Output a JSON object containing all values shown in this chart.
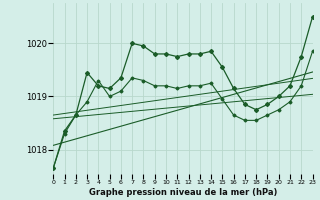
{
  "xlabel": "Graphe pression niveau de la mer (hPa)",
  "bg_color": "#d4eee8",
  "grid_color": "#b8d8cc",
  "line_color": "#1a5c28",
  "x": [
    0,
    1,
    2,
    3,
    4,
    5,
    6,
    7,
    8,
    9,
    10,
    11,
    12,
    13,
    14,
    15,
    16,
    17,
    18,
    19,
    20,
    21,
    22,
    23
  ],
  "series_main": [
    1017.65,
    1018.35,
    1018.65,
    1019.45,
    1019.2,
    1019.15,
    1019.35,
    1020.0,
    1019.95,
    1019.8,
    1019.8,
    1019.75,
    1019.8,
    1019.8,
    1019.85,
    1019.55,
    1019.15,
    1018.85,
    1018.75,
    1018.85,
    1019.0,
    1019.2,
    1019.75,
    1020.5
  ],
  "series_lower": [
    1017.65,
    1018.3,
    1018.65,
    1018.9,
    1019.3,
    1019.0,
    1019.1,
    1019.35,
    1019.3,
    1019.2,
    1019.2,
    1019.15,
    1019.2,
    1019.2,
    1019.25,
    1018.95,
    1018.65,
    1018.55,
    1018.55,
    1018.65,
    1018.75,
    1018.9,
    1019.2,
    1019.85
  ],
  "trend1": [
    1018.08,
    1018.14,
    1018.2,
    1018.26,
    1018.32,
    1018.38,
    1018.44,
    1018.5,
    1018.56,
    1018.62,
    1018.68,
    1018.74,
    1018.8,
    1018.86,
    1018.92,
    1018.98,
    1019.04,
    1019.1,
    1019.16,
    1019.22,
    1019.28,
    1019.34,
    1019.4,
    1019.46
  ],
  "trend2": [
    1018.65,
    1018.68,
    1018.71,
    1018.74,
    1018.77,
    1018.8,
    1018.83,
    1018.86,
    1018.89,
    1018.92,
    1018.95,
    1018.98,
    1019.01,
    1019.04,
    1019.07,
    1019.1,
    1019.13,
    1019.16,
    1019.19,
    1019.22,
    1019.25,
    1019.28,
    1019.31,
    1019.34
  ],
  "trend3": [
    1018.58,
    1018.6,
    1018.62,
    1018.64,
    1018.66,
    1018.68,
    1018.7,
    1018.72,
    1018.74,
    1018.76,
    1018.78,
    1018.8,
    1018.82,
    1018.84,
    1018.86,
    1018.88,
    1018.9,
    1018.92,
    1018.94,
    1018.96,
    1018.98,
    1019.0,
    1019.02,
    1019.04
  ],
  "ylim": [
    1017.55,
    1020.75
  ],
  "yticks": [
    1018,
    1019,
    1020
  ],
  "xlim": [
    0,
    23
  ]
}
